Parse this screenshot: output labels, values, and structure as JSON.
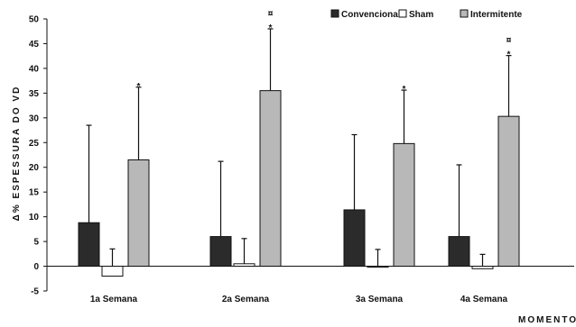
{
  "chart_data": {
    "type": "bar",
    "ylabel": "Δ% ESPESSURA DO VD",
    "xlabel": "MOMENTO",
    "ylim": [
      -5,
      50
    ],
    "yticks": [
      -5,
      0,
      5,
      10,
      15,
      20,
      25,
      30,
      35,
      40,
      45,
      50
    ],
    "legend_position": "top-right",
    "grid": false,
    "categories": [
      "1a Semana",
      "2a Semana",
      "3a Semana",
      "4a Semana"
    ],
    "series": [
      {
        "name": "Convencional",
        "color": "#2b2b2b",
        "values": [
          8.8,
          6.0,
          11.4,
          6.0
        ],
        "error_upper": [
          28.5,
          21.2,
          26.6,
          20.5
        ],
        "markers": [
          "",
          "",
          "",
          ""
        ]
      },
      {
        "name": "Sham",
        "color": "#ffffff",
        "values": [
          -2.0,
          0.5,
          -0.2,
          -0.5
        ],
        "error_upper": [
          3.5,
          5.6,
          3.4,
          2.4
        ],
        "markers": [
          "",
          "",
          "",
          ""
        ]
      },
      {
        "name": "Intermitente",
        "color": "#b8b8b8",
        "values": [
          21.5,
          35.5,
          24.8,
          30.3
        ],
        "error_upper": [
          36.2,
          48.0,
          35.6,
          42.6
        ],
        "markers": [
          "*",
          "¤\n*",
          "*",
          "¤\n*"
        ]
      }
    ]
  }
}
